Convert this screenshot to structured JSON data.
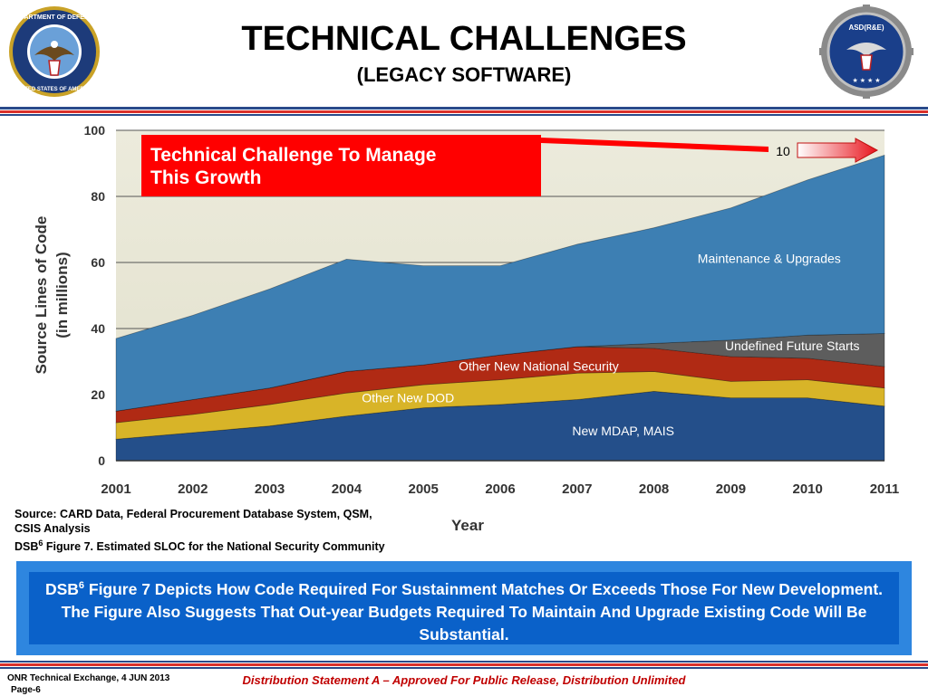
{
  "header": {
    "title": "TECHNICAL CHALLENGES",
    "subtitle": "(LEGACY SOFTWARE)",
    "left_seal": {
      "icon": "dod-seal-icon",
      "ring_text": "DEPARTMENT OF DEFENSE • UNITED STATES OF AMERICA"
    },
    "right_seal": {
      "icon": "asdirae-seal-icon",
      "text": "ASD(R&E)"
    }
  },
  "colors": {
    "header_stripe": "#2a4a8a",
    "header_stripe_red": "#d9302a",
    "callout_red": "#ff0000",
    "summary_outer": "#2e86df",
    "summary_inner": "#0a61c9",
    "footer_red": "#c00000"
  },
  "chart_data": {
    "type": "area",
    "stacked": true,
    "title": "",
    "xlabel": "Year",
    "ylabel": "Source  Lines of Code",
    "ylabel_unit": "(in millions)",
    "x": [
      2001,
      2002,
      2003,
      2004,
      2005,
      2006,
      2007,
      2008,
      2009,
      2010,
      2011
    ],
    "xticks": [
      "2001",
      "2002",
      "2003",
      "2004",
      "2005",
      "2006",
      "2007",
      "2008",
      "2009",
      "2010",
      "2011"
    ],
    "yticks": [
      "0",
      "20",
      "40",
      "60",
      "80",
      "100"
    ],
    "ylim": [
      0,
      100
    ],
    "grid": true,
    "series": [
      {
        "name": "New MDAP, MAIS",
        "color": "#244f8a",
        "values": [
          6.5,
          8.5,
          10.5,
          13.5,
          16,
          17,
          18.5,
          21,
          19,
          19,
          16.5
        ]
      },
      {
        "name": "Other New DOD",
        "color": "#d8b428",
        "values": [
          5,
          5.5,
          6.5,
          7,
          7,
          7.5,
          8,
          6,
          5,
          5.5,
          5.5
        ]
      },
      {
        "name": "Other New National Security",
        "color": "#b02a14",
        "values": [
          3.5,
          4.5,
          5,
          6.5,
          6,
          7.5,
          8,
          7,
          7.5,
          6.5,
          6.5
        ]
      },
      {
        "name": "Undefined Future Starts",
        "color": "#5d5d5d",
        "values": [
          0,
          0,
          0,
          0,
          0,
          0,
          0,
          1.5,
          5,
          7,
          10
        ]
      },
      {
        "name": "Maintenance & Upgrades",
        "color": "#3d7fb3",
        "values": [
          22,
          25.5,
          30,
          34,
          30,
          27,
          31,
          35,
          40,
          47,
          54
        ]
      }
    ],
    "annotations": {
      "callout": "Technical Challenge To Manage This Growth",
      "arrow_label": "10"
    }
  },
  "source": {
    "line1": "Source: CARD Data, Federal Procurement Database System, QSM,",
    "line2": "CSIS Analysis",
    "line3_prefix": "DSB",
    "line3_sup": "6",
    "line3_rest": " Figure 7. Estimated SLOC for the National Security Community"
  },
  "summary": {
    "prefix": "DSB",
    "sup": "6",
    "text": " Figure 7 Depicts How Code Required For Sustainment Matches Or Exceeds Those For New Development.  The Figure Also Suggests That Out-year Budgets Required To Maintain And Upgrade Existing Code Will Be Substantial."
  },
  "footer": {
    "left_line1": "ONR Technical  Exchange, 4 JUN 2013",
    "left_line2": "Page-6",
    "center": "Distribution Statement A – Approved For Public Release, Distribution Unlimited"
  }
}
